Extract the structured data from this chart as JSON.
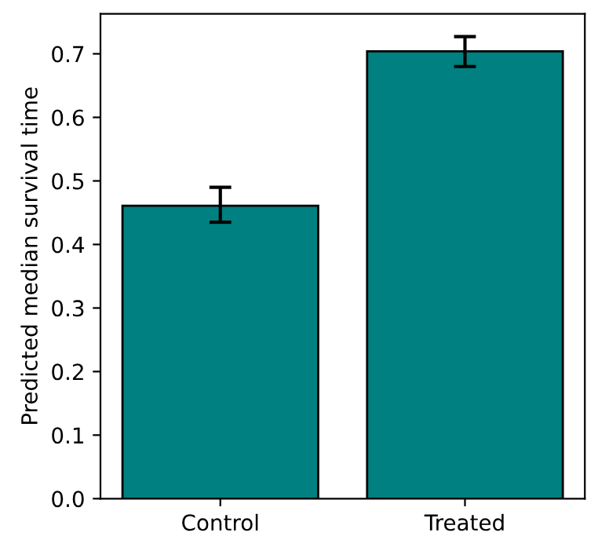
{
  "chart_data": {
    "type": "bar",
    "ylabel": "Predicted median survival time",
    "categories": [
      "Control",
      "Treated"
    ],
    "values": [
      0.461,
      0.704
    ],
    "errors": [
      [
        0.435,
        0.49
      ],
      [
        0.68,
        0.727
      ]
    ],
    "color": "#008080",
    "ylim": [
      0,
      0.763
    ],
    "yticks": [
      {
        "value": 0,
        "label": "0.0"
      },
      0.1,
      0.2,
      0.3,
      0.4,
      0.5,
      0.6,
      0.7
    ],
    "grid": false
  }
}
